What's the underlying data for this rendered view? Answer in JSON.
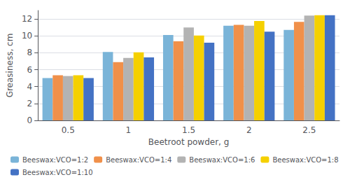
{
  "chart_data": {
    "type": "bar",
    "xlabel": "Beetroot powder, g",
    "ylabel": "Greasiness, cm",
    "categories": [
      "0.5",
      "1",
      "1.5",
      "2",
      "2.5"
    ],
    "series": [
      {
        "name": "Beeswax:VCO=1:2",
        "color": "#7ab4d8",
        "values": [
          5.0,
          8.1,
          10.1,
          11.2,
          10.7
        ]
      },
      {
        "name": "Beeswax:VCO=1:4",
        "color": "#f0904a",
        "values": [
          5.35,
          6.9,
          9.35,
          11.3,
          11.65
        ]
      },
      {
        "name": "Beeswax:VCO=1:6",
        "color": "#b3b3b3",
        "values": [
          5.25,
          7.4,
          11.0,
          11.2,
          12.4
        ]
      },
      {
        "name": "Beeswax:VCO=1:8",
        "color": "#f5d000",
        "values": [
          5.35,
          8.05,
          10.05,
          11.75,
          12.45
        ]
      },
      {
        "name": "Beeswax:VCO=1:10",
        "color": "#4472c4",
        "values": [
          5.0,
          7.45,
          9.2,
          10.5,
          12.45
        ]
      }
    ],
    "ylim": [
      0,
      13
    ],
    "yticks": [
      0,
      2,
      4,
      6,
      8,
      10,
      12
    ],
    "grid": true,
    "legend": "bottom"
  }
}
